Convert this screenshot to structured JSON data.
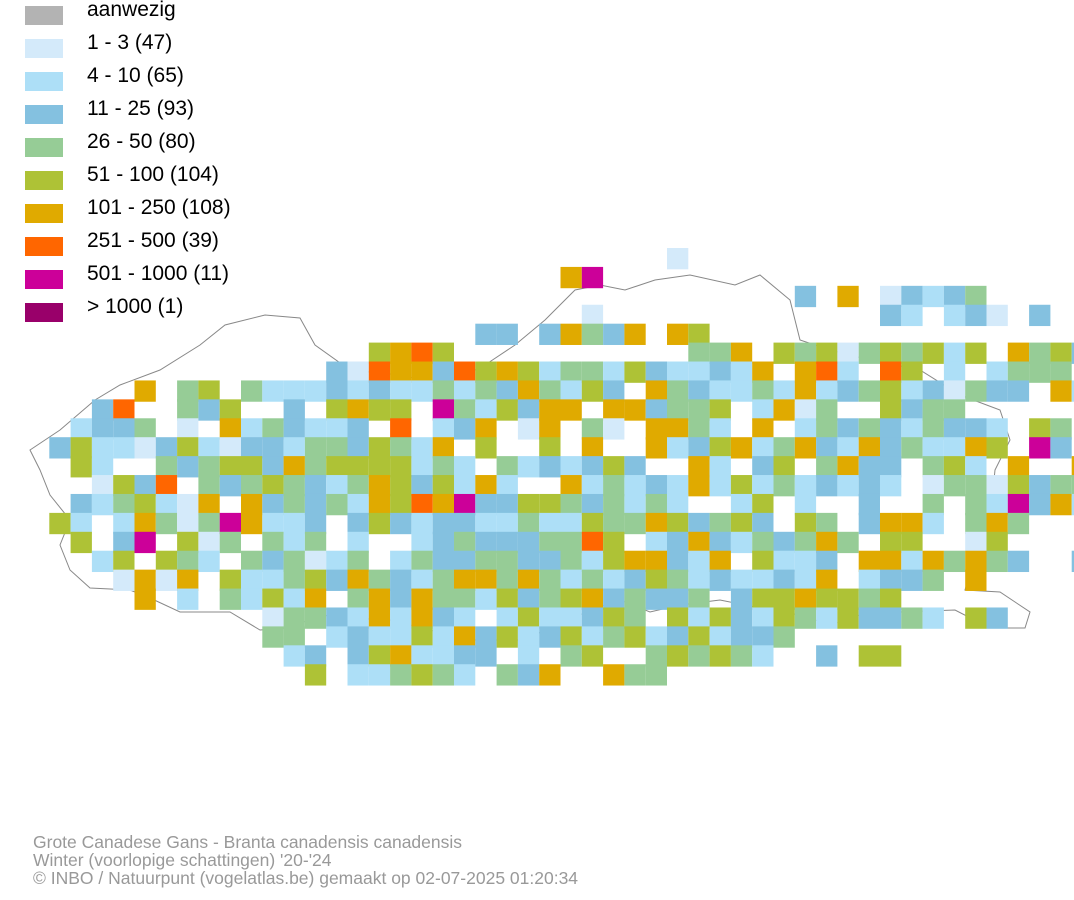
{
  "legend": [
    {
      "label": "aanwezig",
      "color": "#b3b3b3"
    },
    {
      "label": "1 - 3 (47)",
      "color": "#d4eafa"
    },
    {
      "label": "4 - 10 (65)",
      "color": "#addff7"
    },
    {
      "label": "11 - 25 (93)",
      "color": "#84c1e0"
    },
    {
      "label": "26 - 50 (80)",
      "color": "#96cc96"
    },
    {
      "label": "51 - 100 (104)",
      "color": "#aec236"
    },
    {
      "label": "101 - 250 (108)",
      "color": "#e0aa00"
    },
    {
      "label": "251 - 500 (39)",
      "color": "#ff6600"
    },
    {
      "label": "501 - 1000 (11)",
      "color": "#cc0099"
    },
    {
      "label": "> 1000 (1)",
      "color": "#99006a"
    }
  ],
  "caption": {
    "species": "Grote Canadese Gans - Branta canadensis canadensis",
    "period": "Winter (voorlopige schattingen) '20-'24",
    "credit": "© INBO / Natuurpunt (vogelatlas.be) gemaakt op 02-07-2025 01:20:34"
  }
}
